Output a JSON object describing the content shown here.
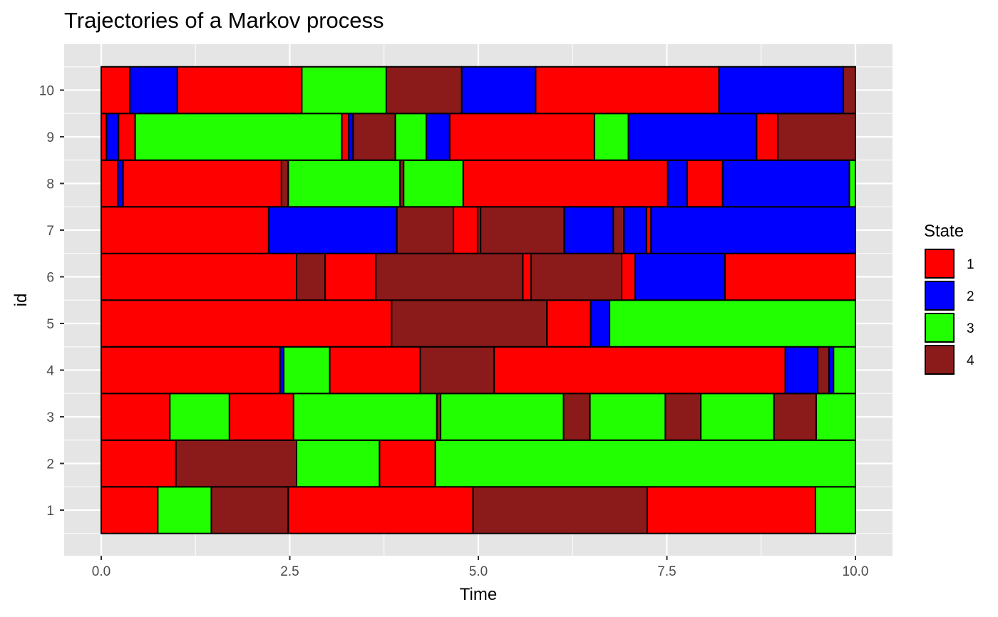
{
  "chart_data": {
    "type": "bar",
    "subtype": "stacked-horizontal-segments",
    "title": "Trajectories of a Markov process",
    "xlabel": "Time",
    "ylabel": "id",
    "xlim": [
      0,
      10
    ],
    "x_ticks": [
      0,
      2.5,
      5,
      7.5,
      10
    ],
    "x_tick_labels": [
      "0.0",
      "2.5",
      "5.0",
      "7.5",
      "10.0"
    ],
    "categories": [
      "1",
      "2",
      "3",
      "4",
      "5",
      "6",
      "7",
      "8",
      "9",
      "10"
    ],
    "grid": true,
    "legend": {
      "title": "State",
      "placement": "right",
      "entries": [
        {
          "label": "1",
          "color": "#ff0000"
        },
        {
          "label": "2",
          "color": "#0000ff"
        },
        {
          "label": "3",
          "color": "#22ff00"
        },
        {
          "label": "4",
          "color": "#8b1a1a"
        }
      ]
    },
    "trajectories": [
      {
        "id": "1",
        "segments": [
          {
            "start": 0.0,
            "end": 0.75,
            "state": 1
          },
          {
            "start": 0.75,
            "end": 1.46,
            "state": 3
          },
          {
            "start": 1.46,
            "end": 2.48,
            "state": 4
          },
          {
            "start": 2.48,
            "end": 4.93,
            "state": 1
          },
          {
            "start": 4.93,
            "end": 7.24,
            "state": 4
          },
          {
            "start": 7.24,
            "end": 9.47,
            "state": 1
          },
          {
            "start": 9.47,
            "end": 10.0,
            "state": 3
          }
        ]
      },
      {
        "id": "2",
        "segments": [
          {
            "start": 0.0,
            "end": 0.99,
            "state": 1
          },
          {
            "start": 0.99,
            "end": 2.59,
            "state": 4
          },
          {
            "start": 2.59,
            "end": 3.69,
            "state": 3
          },
          {
            "start": 3.69,
            "end": 4.43,
            "state": 1
          },
          {
            "start": 4.43,
            "end": 10.0,
            "state": 3
          }
        ]
      },
      {
        "id": "3",
        "segments": [
          {
            "start": 0.0,
            "end": 0.91,
            "state": 1
          },
          {
            "start": 0.91,
            "end": 1.7,
            "state": 3
          },
          {
            "start": 1.7,
            "end": 2.55,
            "state": 1
          },
          {
            "start": 2.55,
            "end": 4.45,
            "state": 3
          },
          {
            "start": 4.45,
            "end": 4.5,
            "state": 4
          },
          {
            "start": 4.5,
            "end": 6.13,
            "state": 3
          },
          {
            "start": 6.13,
            "end": 6.48,
            "state": 4
          },
          {
            "start": 6.48,
            "end": 7.48,
            "state": 3
          },
          {
            "start": 7.48,
            "end": 7.95,
            "state": 4
          },
          {
            "start": 7.95,
            "end": 8.92,
            "state": 3
          },
          {
            "start": 8.92,
            "end": 9.48,
            "state": 4
          },
          {
            "start": 9.48,
            "end": 10.0,
            "state": 3
          }
        ]
      },
      {
        "id": "4",
        "segments": [
          {
            "start": 0.0,
            "end": 2.37,
            "state": 1
          },
          {
            "start": 2.37,
            "end": 2.42,
            "state": 2
          },
          {
            "start": 2.42,
            "end": 3.03,
            "state": 3
          },
          {
            "start": 3.03,
            "end": 4.23,
            "state": 1
          },
          {
            "start": 4.23,
            "end": 5.21,
            "state": 4
          },
          {
            "start": 5.21,
            "end": 9.07,
            "state": 1
          },
          {
            "start": 9.07,
            "end": 9.5,
            "state": 2
          },
          {
            "start": 9.5,
            "end": 9.65,
            "state": 4
          },
          {
            "start": 9.65,
            "end": 9.71,
            "state": 2
          },
          {
            "start": 9.71,
            "end": 10.0,
            "state": 3
          }
        ]
      },
      {
        "id": "5",
        "segments": [
          {
            "start": 0.0,
            "end": 3.85,
            "state": 1
          },
          {
            "start": 3.85,
            "end": 5.91,
            "state": 4
          },
          {
            "start": 5.91,
            "end": 6.49,
            "state": 1
          },
          {
            "start": 6.49,
            "end": 6.74,
            "state": 2
          },
          {
            "start": 6.74,
            "end": 10.0,
            "state": 3
          }
        ]
      },
      {
        "id": "6",
        "segments": [
          {
            "start": 0.0,
            "end": 2.59,
            "state": 1
          },
          {
            "start": 2.59,
            "end": 2.97,
            "state": 4
          },
          {
            "start": 2.97,
            "end": 3.64,
            "state": 1
          },
          {
            "start": 3.64,
            "end": 5.59,
            "state": 4
          },
          {
            "start": 5.59,
            "end": 5.7,
            "state": 1
          },
          {
            "start": 5.7,
            "end": 6.9,
            "state": 4
          },
          {
            "start": 6.9,
            "end": 7.08,
            "state": 1
          },
          {
            "start": 7.08,
            "end": 8.27,
            "state": 2
          },
          {
            "start": 8.27,
            "end": 10.0,
            "state": 1
          }
        ]
      },
      {
        "id": "7",
        "segments": [
          {
            "start": 0.0,
            "end": 2.22,
            "state": 1
          },
          {
            "start": 2.22,
            "end": 3.92,
            "state": 2
          },
          {
            "start": 3.92,
            "end": 4.67,
            "state": 4
          },
          {
            "start": 4.67,
            "end": 4.99,
            "state": 1
          },
          {
            "start": 4.99,
            "end": 5.03,
            "state": 4
          },
          {
            "start": 5.03,
            "end": 6.14,
            "state": 4
          },
          {
            "start": 6.14,
            "end": 6.79,
            "state": 2
          },
          {
            "start": 6.79,
            "end": 6.93,
            "state": 4
          },
          {
            "start": 6.93,
            "end": 7.23,
            "state": 2
          },
          {
            "start": 7.23,
            "end": 7.29,
            "state": 1
          },
          {
            "start": 7.29,
            "end": 10.0,
            "state": 2
          }
        ]
      },
      {
        "id": "8",
        "segments": [
          {
            "start": 0.0,
            "end": 0.22,
            "state": 1
          },
          {
            "start": 0.22,
            "end": 0.29,
            "state": 2
          },
          {
            "start": 0.29,
            "end": 2.39,
            "state": 1
          },
          {
            "start": 2.39,
            "end": 2.48,
            "state": 4
          },
          {
            "start": 2.48,
            "end": 3.96,
            "state": 3
          },
          {
            "start": 3.96,
            "end": 4.01,
            "state": 4
          },
          {
            "start": 4.01,
            "end": 4.8,
            "state": 3
          },
          {
            "start": 4.8,
            "end": 7.51,
            "state": 1
          },
          {
            "start": 7.51,
            "end": 7.77,
            "state": 2
          },
          {
            "start": 7.77,
            "end": 8.24,
            "state": 1
          },
          {
            "start": 8.24,
            "end": 9.92,
            "state": 2
          },
          {
            "start": 9.92,
            "end": 10.0,
            "state": 3
          }
        ]
      },
      {
        "id": "9",
        "segments": [
          {
            "start": 0.0,
            "end": 0.07,
            "state": 1
          },
          {
            "start": 0.07,
            "end": 0.23,
            "state": 2
          },
          {
            "start": 0.23,
            "end": 0.45,
            "state": 1
          },
          {
            "start": 0.45,
            "end": 3.19,
            "state": 3
          },
          {
            "start": 3.19,
            "end": 3.28,
            "state": 1
          },
          {
            "start": 3.28,
            "end": 3.34,
            "state": 2
          },
          {
            "start": 3.34,
            "end": 3.9,
            "state": 4
          },
          {
            "start": 3.9,
            "end": 4.31,
            "state": 3
          },
          {
            "start": 4.31,
            "end": 4.62,
            "state": 2
          },
          {
            "start": 4.62,
            "end": 6.54,
            "state": 1
          },
          {
            "start": 6.54,
            "end": 6.99,
            "state": 3
          },
          {
            "start": 6.99,
            "end": 8.69,
            "state": 2
          },
          {
            "start": 8.69,
            "end": 8.97,
            "state": 1
          },
          {
            "start": 8.97,
            "end": 10.0,
            "state": 4
          }
        ]
      },
      {
        "id": "10",
        "segments": [
          {
            "start": 0.0,
            "end": 0.38,
            "state": 1
          },
          {
            "start": 0.38,
            "end": 1.01,
            "state": 2
          },
          {
            "start": 1.01,
            "end": 2.66,
            "state": 1
          },
          {
            "start": 2.66,
            "end": 3.78,
            "state": 3
          },
          {
            "start": 3.78,
            "end": 4.78,
            "state": 4
          },
          {
            "start": 4.78,
            "end": 5.76,
            "state": 2
          },
          {
            "start": 5.76,
            "end": 8.19,
            "state": 1
          },
          {
            "start": 8.19,
            "end": 9.84,
            "state": 2
          },
          {
            "start": 9.84,
            "end": 10.0,
            "state": 4
          }
        ]
      }
    ]
  },
  "colors": {
    "panel_background": "#e5e5e5",
    "grid": "#ffffff",
    "border": "#000000"
  }
}
